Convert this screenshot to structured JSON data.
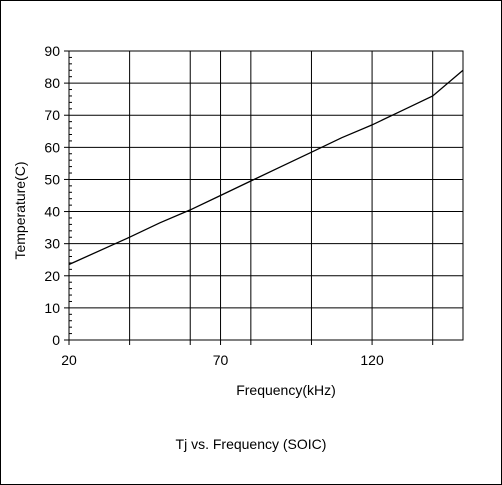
{
  "chart_data": {
    "type": "line",
    "title": "",
    "caption": "Tj vs. Frequency (SOIC)",
    "xlabel": "Frequency(kHz)",
    "ylabel": "Temperature(C)",
    "xlim": [
      20,
      150
    ],
    "ylim": [
      0,
      90
    ],
    "x_tick_labels": [
      "20",
      "70",
      "120"
    ],
    "x_tick_values": [
      20,
      70,
      120
    ],
    "x_gridlines": [
      40,
      60,
      70,
      80,
      100,
      120,
      140
    ],
    "y_ticks": [
      0,
      10,
      20,
      30,
      40,
      50,
      60,
      70,
      80,
      90
    ],
    "grid": true,
    "legend": "none",
    "series": [
      {
        "color": "#000000",
        "x": [
          20,
          40,
          50,
          60,
          70,
          80,
          90,
          100,
          110,
          120,
          130,
          140,
          150
        ],
        "y": [
          23.5,
          32,
          36.5,
          40.5,
          45,
          49.5,
          54,
          58.5,
          63,
          67,
          71.5,
          76,
          84
        ]
      }
    ]
  }
}
